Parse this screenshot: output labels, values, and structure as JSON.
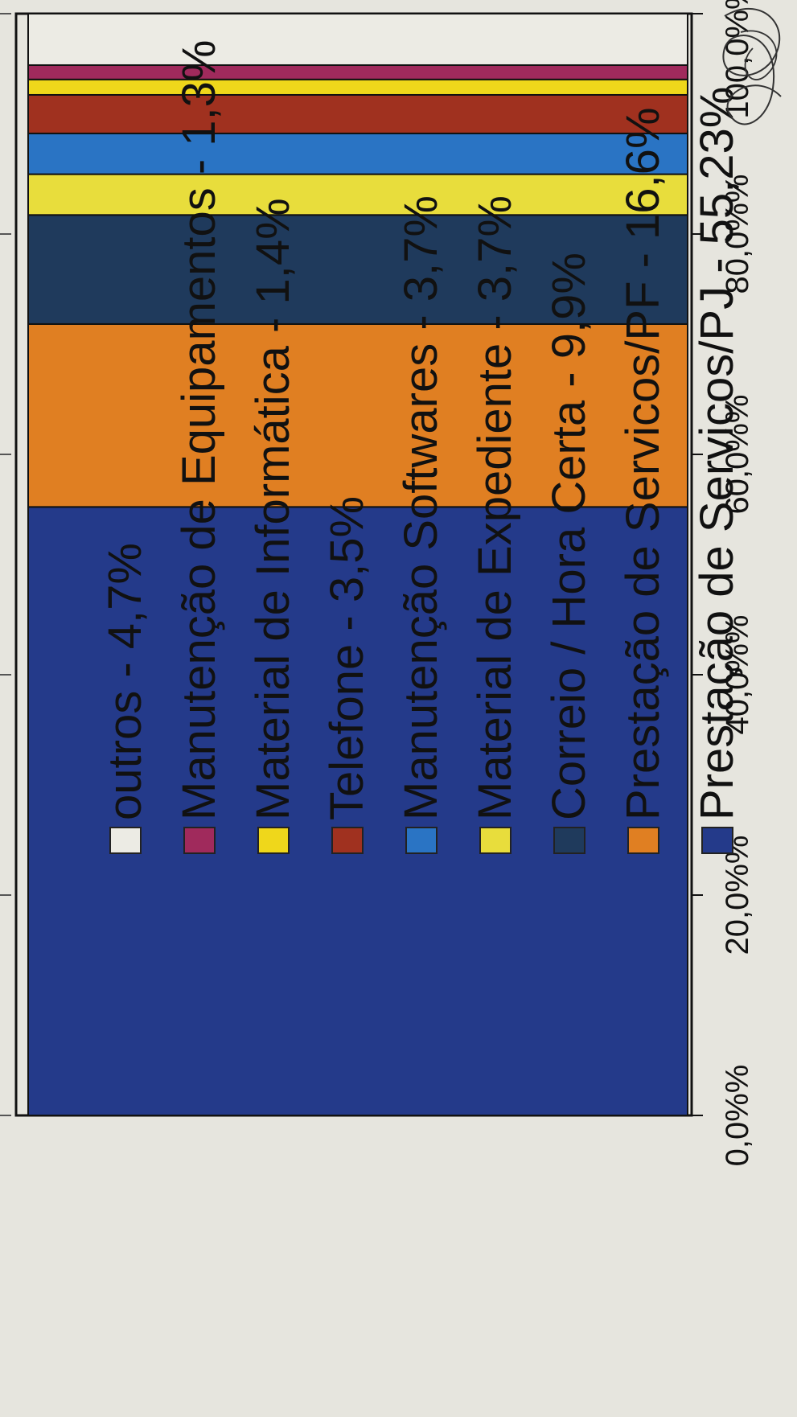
{
  "chart_data": {
    "type": "bar",
    "stacked": true,
    "orientation": "vertical-single-stacked-column",
    "categories": [
      ""
    ],
    "ylim": [
      0,
      100
    ],
    "y_ticks": [
      {
        "value": 0,
        "label": "0,0%%"
      },
      {
        "value": 20,
        "label": "20,0%%"
      },
      {
        "value": 40,
        "label": "40,0%%"
      },
      {
        "value": 60,
        "label": "60,0%%"
      },
      {
        "value": 80,
        "label": "80,0%%"
      },
      {
        "value": 100,
        "label": "100,0%%"
      }
    ],
    "series": [
      {
        "label": "Prestação de Servicos/PJ - 55,23%",
        "value": 55.23,
        "color": "#243a8a"
      },
      {
        "label": "Prestação de Servicos/PF - 16,6%",
        "value": 16.6,
        "color": "#e07f22"
      },
      {
        "label": "Correio / Hora Certa - 9,9%",
        "value": 9.9,
        "color": "#1f3a5c"
      },
      {
        "label": "Material de Expediente - 3,7%",
        "value": 3.7,
        "color": "#e8dd3c"
      },
      {
        "label": "Manutenção Softwares - 3,7%",
        "value": 3.7,
        "color": "#2a74c4"
      },
      {
        "label": "Telefone - 3,5%",
        "value": 3.5,
        "color": "#a0311f"
      },
      {
        "label": "Material de Informática - 1,4%",
        "value": 1.4,
        "color": "#efd71b"
      },
      {
        "label": "Manutenção de Equipamentos - 1,3%",
        "value": 1.3,
        "color": "#a02a5c"
      },
      {
        "label": "outros - 4,7%",
        "value": 4.7,
        "color": "#ecebe4"
      }
    ],
    "legend_order": [
      "outros - 4,7%",
      "Manutenção de Equipamentos - 1,3%",
      "Material de Informática - 1,4%",
      "Telefone - 3,5%",
      "Manutenção Softwares - 3,7%",
      "Material de Expediente - 3,7%",
      "Correio / Hora Certa - 9,9%",
      "Prestação de Servicos/PF - 16,6%",
      "Prestação de Servicos/PJ - 55,23%"
    ],
    "grid": false,
    "legend_position": "right"
  }
}
